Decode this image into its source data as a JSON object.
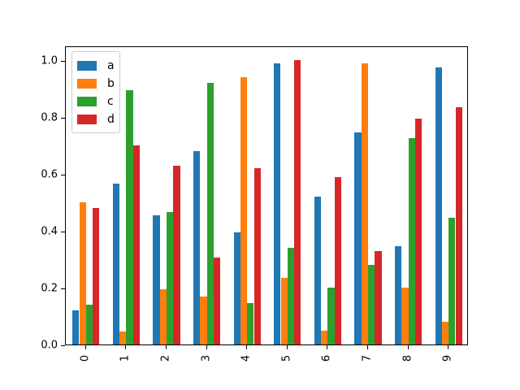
{
  "chart_data": {
    "type": "bar",
    "title": "",
    "xlabel": "",
    "ylabel": "",
    "categories": [
      "0",
      "1",
      "2",
      "3",
      "4",
      "5",
      "6",
      "7",
      "8",
      "9"
    ],
    "series": [
      {
        "name": "a",
        "color": "#1f77b4",
        "values": [
          0.12,
          0.565,
          0.455,
          0.68,
          0.395,
          0.99,
          0.52,
          0.745,
          0.345,
          0.975
        ]
      },
      {
        "name": "b",
        "color": "#ff7f0e",
        "values": [
          0.5,
          0.045,
          0.195,
          0.17,
          0.94,
          0.235,
          0.05,
          0.99,
          0.2,
          0.08
        ]
      },
      {
        "name": "c",
        "color": "#2ca02c",
        "values": [
          0.14,
          0.895,
          0.465,
          0.92,
          0.145,
          0.34,
          0.2,
          0.28,
          0.725,
          0.445
        ]
      },
      {
        "name": "d",
        "color": "#d62728",
        "values": [
          0.48,
          0.7,
          0.63,
          0.305,
          0.62,
          1.0,
          0.59,
          0.33,
          0.795,
          0.835
        ]
      }
    ],
    "ytick_labels": [
      "0.0",
      "0.2",
      "0.4",
      "0.6",
      "0.8",
      "1.0"
    ],
    "ytick_values": [
      0.0,
      0.2,
      0.4,
      0.6,
      0.8,
      1.0
    ],
    "ylim": [
      0,
      1.05
    ],
    "xlim": [
      -0.5,
      9.5
    ],
    "grid": false,
    "xtick_rotation": 90,
    "legend": {
      "position": "upper left",
      "entries": [
        "a",
        "b",
        "c",
        "d"
      ]
    }
  }
}
